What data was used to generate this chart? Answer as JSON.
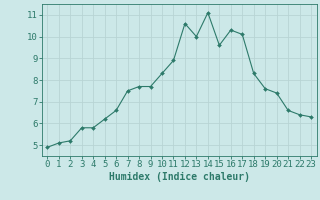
{
  "x": [
    0,
    1,
    2,
    3,
    4,
    5,
    6,
    7,
    8,
    9,
    10,
    11,
    12,
    13,
    14,
    15,
    16,
    17,
    18,
    19,
    20,
    21,
    22,
    23
  ],
  "y": [
    4.9,
    5.1,
    5.2,
    5.8,
    5.8,
    6.2,
    6.6,
    7.5,
    7.7,
    7.7,
    8.3,
    8.9,
    10.6,
    10.0,
    11.1,
    9.6,
    10.3,
    10.1,
    8.3,
    7.6,
    7.4,
    6.6,
    6.4,
    6.3
  ],
  "xlabel": "Humidex (Indice chaleur)",
  "ylim": [
    4.5,
    11.5
  ],
  "xlim": [
    -0.5,
    23.5
  ],
  "yticks": [
    5,
    6,
    7,
    8,
    9,
    10,
    11
  ],
  "xticks": [
    0,
    1,
    2,
    3,
    4,
    5,
    6,
    7,
    8,
    9,
    10,
    11,
    12,
    13,
    14,
    15,
    16,
    17,
    18,
    19,
    20,
    21,
    22,
    23
  ],
  "line_color": "#2d7a6a",
  "marker_color": "#2d7a6a",
  "bg_color": "#cce8e8",
  "grid_color": "#b8d4d4",
  "axis_color": "#2d7a6a",
  "tick_label_color": "#2d7a6a",
  "xlabel_color": "#2d7a6a",
  "xlabel_fontsize": 7.0,
  "tick_fontsize": 6.5
}
